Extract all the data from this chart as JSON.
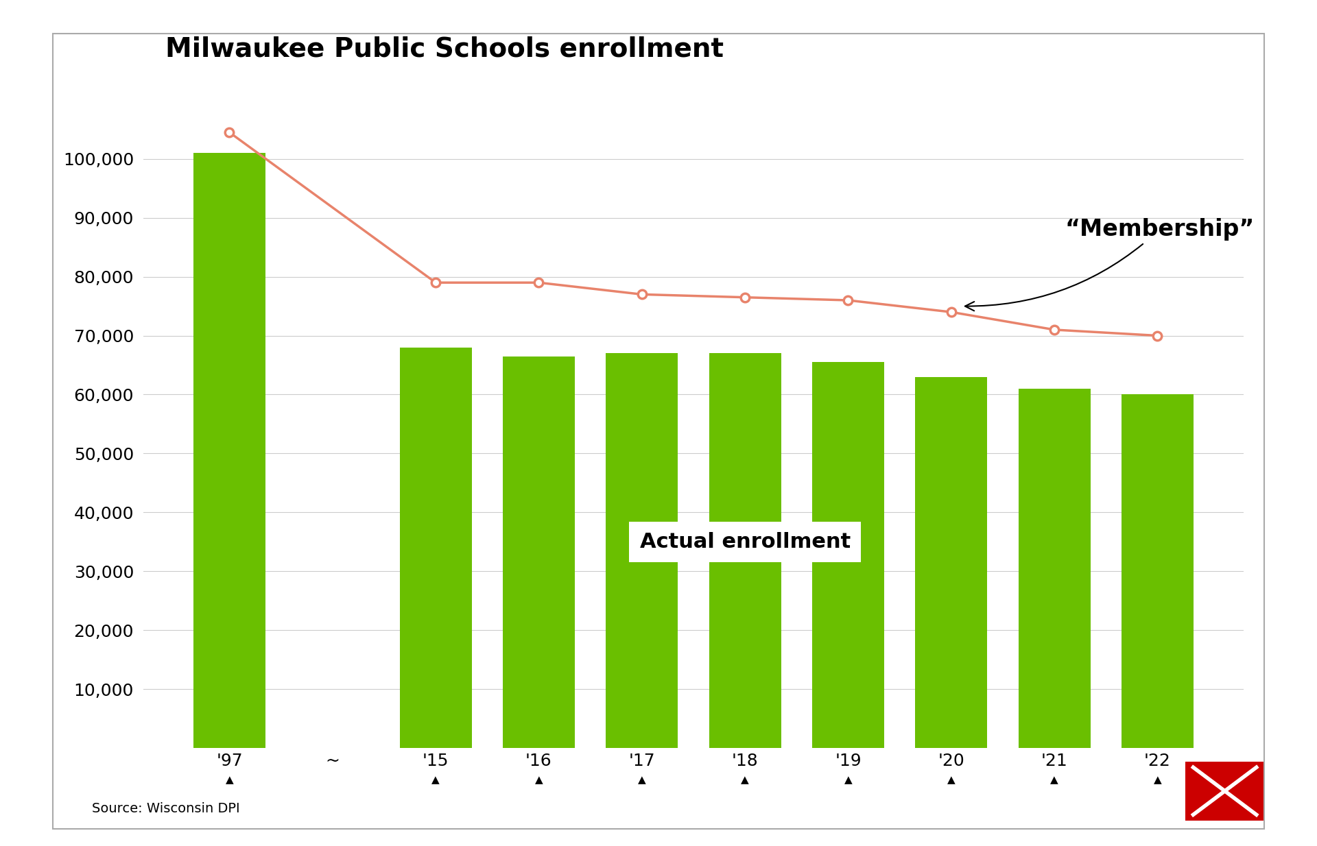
{
  "title": "Milwaukee Public Schools enrollment",
  "bar_categories": [
    "'97",
    "~",
    "'15",
    "'16",
    "'17",
    "'18",
    "'19",
    "'20",
    "'21",
    "'22"
  ],
  "bar_values": [
    101000,
    0,
    68000,
    66500,
    67000,
    67000,
    65500,
    63000,
    61000,
    60000
  ],
  "line_values": [
    101000,
    null,
    79000,
    79000,
    77000,
    76500,
    76000,
    74000,
    71000,
    70000
  ],
  "line_peak_value": 104500,
  "bar_color": "#6abf00",
  "line_color": "#e8836b",
  "background_color": "#ffffff",
  "grid_color": "#cccccc",
  "ylim": [
    0,
    115000
  ],
  "yticks": [
    10000,
    20000,
    30000,
    40000,
    50000,
    60000,
    70000,
    80000,
    90000,
    100000
  ],
  "source_text": "Source: Wisconsin DPI",
  "annotation_membership": "“Membership”",
  "annotation_actual": "Actual enrollment",
  "title_fontsize": 28,
  "tick_fontsize": 18,
  "annotation_fontsize": 22,
  "source_fontsize": 14
}
